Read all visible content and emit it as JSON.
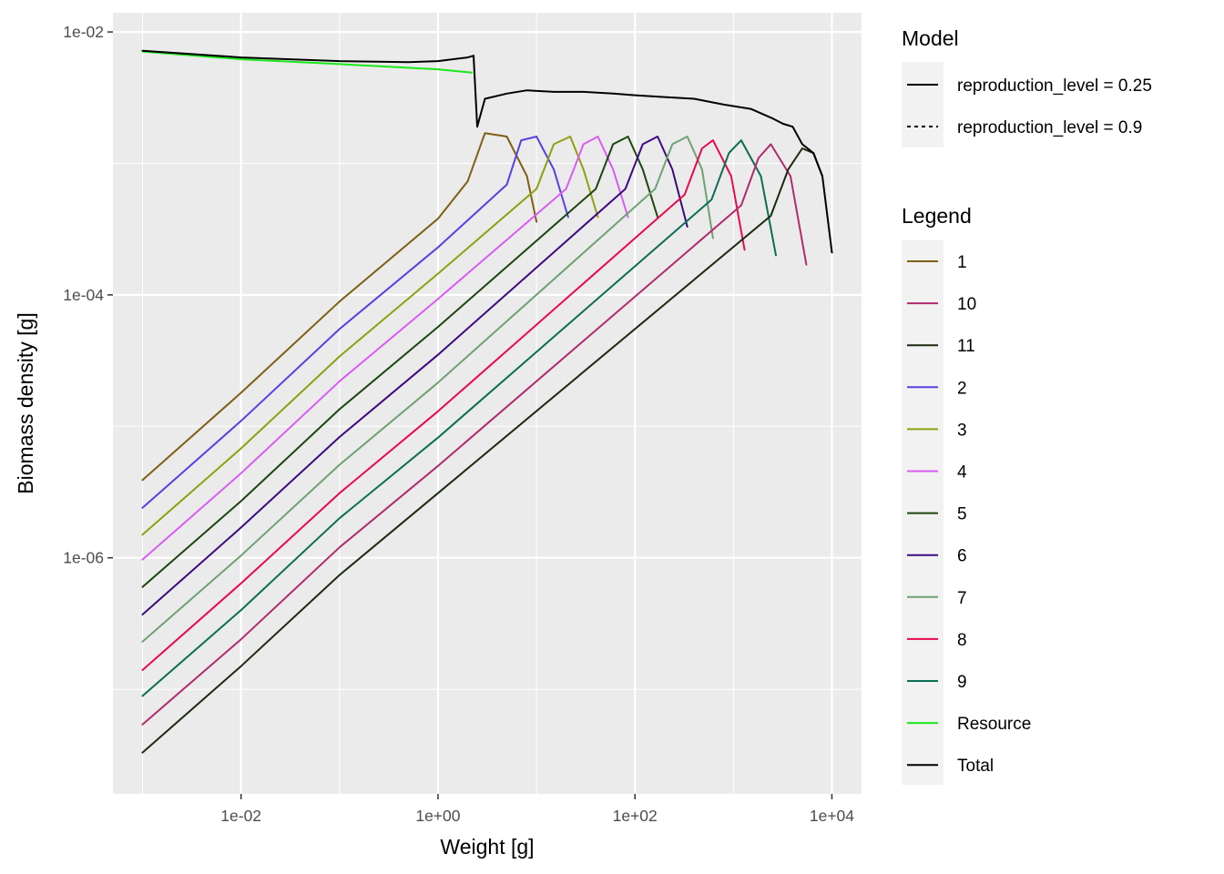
{
  "chart_data": {
    "type": "line",
    "xlabel": "Weight [g]",
    "ylabel": "Biomass density [g]",
    "x_scale": "log",
    "y_scale": "log",
    "xlim": [
      0.0005,
      20000
    ],
    "ylim": [
      1.6e-08,
      0.014
    ],
    "x_ticks": [
      {
        "value": 0.01,
        "label": "1e-02"
      },
      {
        "value": 1,
        "label": "1e+00"
      },
      {
        "value": 100,
        "label": "1e+02"
      },
      {
        "value": 10000,
        "label": "1e+04"
      }
    ],
    "y_ticks": [
      {
        "value": 1e-06,
        "label": "1e-06"
      },
      {
        "value": 0.0001,
        "label": "1e-04"
      },
      {
        "value": 0.01,
        "label": "1e-02"
      }
    ],
    "grid": true,
    "legend_model": {
      "title": "Model",
      "entries": [
        {
          "label": "reproduction_level = 0.25",
          "dash": "solid"
        },
        {
          "label": "reproduction_level = 0.9",
          "dash": "dotted"
        }
      ]
    },
    "legend_species": {
      "title": "Legend",
      "entries": [
        {
          "label": "1",
          "color": "#7f5f14"
        },
        {
          "label": "10",
          "color": "#b22a6e"
        },
        {
          "label": "11",
          "color": "#1c2a10"
        },
        {
          "label": "2",
          "color": "#5b3fe0"
        },
        {
          "label": "3",
          "color": "#8fa010"
        },
        {
          "label": "4",
          "color": "#d95cf2"
        },
        {
          "label": "5",
          "color": "#1c4610"
        },
        {
          "label": "6",
          "color": "#3c0a80"
        },
        {
          "label": "7",
          "color": "#6ea272"
        },
        {
          "label": "8",
          "color": "#e8094d"
        },
        {
          "label": "9",
          "color": "#0b6e55"
        },
        {
          "label": "Resource",
          "color": "#1ae81a"
        },
        {
          "label": "Total",
          "color": "#000000"
        }
      ]
    },
    "series": [
      {
        "name": "1",
        "color": "#7f5f14",
        "x": [
          0.001,
          0.01,
          0.1,
          1,
          2,
          3,
          5,
          8,
          10
        ],
        "y": [
          3.9e-06,
          1.8e-05,
          8.9e-05,
          0.00038,
          0.00073,
          0.0017,
          0.0016,
          0.0008,
          0.00036
        ]
      },
      {
        "name": "2",
        "color": "#5b3fe0",
        "x": [
          0.001,
          0.01,
          0.1,
          1,
          5,
          7,
          10,
          15,
          21
        ],
        "y": [
          2.4e-06,
          1.1e-05,
          5.5e-05,
          0.00023,
          0.00069,
          0.0015,
          0.0016,
          0.0009,
          0.00039
        ]
      },
      {
        "name": "3",
        "color": "#8fa010",
        "x": [
          0.001,
          0.01,
          0.1,
          1,
          10,
          15,
          22,
          30,
          42
        ],
        "y": [
          1.5e-06,
          6.8e-06,
          3.4e-05,
          0.000145,
          0.00064,
          0.0014,
          0.0016,
          0.0009,
          0.00039
        ]
      },
      {
        "name": "4",
        "color": "#d95cf2",
        "x": [
          0.001,
          0.01,
          0.1,
          1,
          20,
          30,
          42,
          60,
          85
        ],
        "y": [
          9.7e-07,
          4.4e-06,
          2.2e-05,
          9.3e-05,
          0.00064,
          0.0014,
          0.0016,
          0.0009,
          0.00039
        ]
      },
      {
        "name": "5",
        "color": "#1c4610",
        "x": [
          0.001,
          0.01,
          0.1,
          1,
          40,
          60,
          85,
          120,
          170
        ],
        "y": [
          6e-07,
          2.7e-06,
          1.35e-05,
          5.7e-05,
          0.00064,
          0.0014,
          0.0016,
          0.0009,
          0.00039
        ]
      },
      {
        "name": "6",
        "color": "#3c0a80",
        "x": [
          0.001,
          0.01,
          0.1,
          1,
          80,
          120,
          170,
          240,
          340
        ],
        "y": [
          3.7e-07,
          1.7e-06,
          8.3e-06,
          3.5e-05,
          0.00064,
          0.0014,
          0.0016,
          0.0009,
          0.00033
        ]
      },
      {
        "name": "7",
        "color": "#6ea272",
        "x": [
          0.001,
          0.01,
          0.1,
          1,
          160,
          240,
          340,
          480,
          620
        ],
        "y": [
          2.3e-07,
          1.04e-06,
          5.1e-06,
          2.15e-05,
          0.00064,
          0.0014,
          0.0016,
          0.0009,
          0.00027
        ]
      },
      {
        "name": "8",
        "color": "#e8094d",
        "x": [
          0.001,
          0.01,
          0.1,
          1,
          320,
          480,
          620,
          950,
          1300
        ],
        "y": [
          1.4e-07,
          6.4e-07,
          3.1e-06,
          1.3e-05,
          0.00058,
          0.0013,
          0.0015,
          0.0008,
          0.00022
        ]
      },
      {
        "name": "9",
        "color": "#0b6e55",
        "x": [
          0.001,
          0.01,
          0.1,
          1,
          600,
          900,
          1200,
          1900,
          2700
        ],
        "y": [
          8.9e-08,
          4e-07,
          2e-06,
          8.2e-06,
          0.00053,
          0.0012,
          0.0015,
          0.0008,
          0.0002
        ]
      },
      {
        "name": "10",
        "color": "#b22a6e",
        "x": [
          0.001,
          0.01,
          0.1,
          1,
          1200,
          1800,
          2400,
          3800,
          5500
        ],
        "y": [
          5.4e-08,
          2.4e-07,
          1.2e-06,
          5e-06,
          0.00048,
          0.0011,
          0.0014,
          0.0008,
          0.00017
        ]
      },
      {
        "name": "11",
        "color": "#1c2a10",
        "x": [
          0.001,
          0.01,
          0.1,
          1,
          2400,
          3600,
          5000,
          6500,
          8000
        ],
        "y": [
          3.3e-08,
          1.5e-07,
          7.4e-07,
          3.1e-06,
          0.0004,
          0.0009,
          0.0013,
          0.0012,
          0.0008
        ]
      },
      {
        "name": "Resource",
        "color": "#1ae81a",
        "x": [
          0.001,
          0.01,
          0.1,
          1,
          2.2
        ],
        "y": [
          0.0071,
          0.0062,
          0.0057,
          0.0052,
          0.0049
        ]
      },
      {
        "name": "Total",
        "color": "#000000",
        "x": [
          0.001,
          0.01,
          0.1,
          0.5,
          1,
          2,
          2.3,
          2.5,
          3,
          5,
          8,
          15,
          30,
          60,
          100,
          200,
          400,
          800,
          1500,
          2500,
          3200,
          4000,
          5000,
          6500,
          8000,
          10000
        ],
        "y": [
          0.0072,
          0.0064,
          0.006,
          0.0059,
          0.006,
          0.0064,
          0.0066,
          0.0019,
          0.0031,
          0.0034,
          0.0036,
          0.0035,
          0.0035,
          0.0034,
          0.0033,
          0.0032,
          0.0031,
          0.0028,
          0.0026,
          0.0022,
          0.002,
          0.0019,
          0.0014,
          0.0012,
          0.0008,
          0.00021
        ]
      }
    ]
  }
}
